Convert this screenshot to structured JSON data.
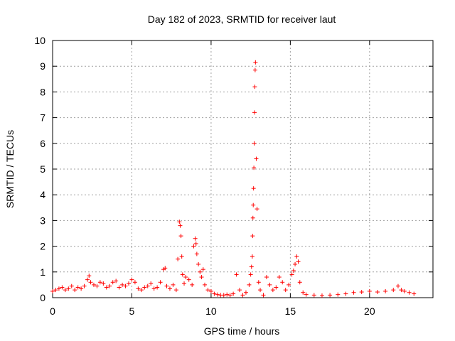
{
  "chart_data": {
    "type": "scatter",
    "title": "Day 182 of 2023, SRMTID for receiver laut",
    "xlabel": "GPS time / hours",
    "ylabel": "SRMTID / TECUs",
    "xlim": [
      0,
      24
    ],
    "ylim": [
      0,
      10
    ],
    "x_ticks": [
      0,
      5,
      10,
      15,
      20
    ],
    "y_ticks": [
      0,
      1,
      2,
      3,
      4,
      5,
      6,
      7,
      8,
      9,
      10
    ],
    "grid": true,
    "marker": "+",
    "series_color": "#ff0000",
    "series": [
      {
        "name": "SRMTID",
        "x": [
          0.0,
          0.2,
          0.4,
          0.6,
          0.8,
          1.0,
          1.2,
          1.4,
          1.6,
          1.8,
          2.0,
          2.2,
          2.3,
          2.4,
          2.6,
          2.8,
          3.0,
          3.2,
          3.4,
          3.6,
          3.8,
          4.0,
          4.2,
          4.4,
          4.6,
          4.8,
          5.0,
          5.2,
          5.4,
          5.6,
          5.8,
          6.0,
          6.2,
          6.4,
          6.6,
          6.8,
          7.0,
          7.1,
          7.2,
          7.4,
          7.6,
          7.8,
          7.9,
          8.0,
          8.05,
          8.1,
          8.15,
          8.2,
          8.3,
          8.4,
          8.6,
          8.8,
          8.9,
          9.0,
          9.05,
          9.1,
          9.2,
          9.3,
          9.4,
          9.5,
          9.6,
          9.8,
          10.0,
          10.2,
          10.4,
          10.6,
          10.8,
          11.0,
          11.2,
          11.4,
          11.6,
          11.8,
          12.0,
          12.2,
          12.4,
          12.5,
          12.55,
          12.6,
          12.62,
          12.64,
          12.66,
          12.68,
          12.7,
          12.72,
          12.74,
          12.76,
          12.78,
          12.8,
          12.85,
          12.9,
          13.0,
          13.1,
          13.3,
          13.5,
          13.7,
          13.9,
          14.1,
          14.3,
          14.5,
          14.7,
          14.9,
          15.1,
          15.2,
          15.3,
          15.4,
          15.5,
          15.6,
          15.8,
          16.0,
          16.5,
          17.0,
          17.5,
          18.0,
          18.5,
          19.0,
          19.5,
          20.0,
          20.5,
          21.0,
          21.5,
          21.8,
          22.0,
          22.2,
          22.5,
          22.8
        ],
        "y": [
          0.25,
          0.3,
          0.35,
          0.4,
          0.3,
          0.35,
          0.45,
          0.3,
          0.4,
          0.35,
          0.45,
          0.7,
          0.85,
          0.6,
          0.5,
          0.45,
          0.6,
          0.55,
          0.4,
          0.45,
          0.6,
          0.65,
          0.4,
          0.5,
          0.45,
          0.55,
          0.7,
          0.6,
          0.35,
          0.3,
          0.4,
          0.45,
          0.55,
          0.35,
          0.4,
          0.6,
          1.1,
          1.15,
          0.45,
          0.35,
          0.5,
          0.3,
          1.5,
          2.95,
          2.8,
          2.4,
          1.6,
          0.9,
          0.55,
          0.8,
          0.7,
          0.5,
          2.0,
          2.3,
          2.1,
          1.7,
          1.3,
          1.0,
          0.8,
          1.1,
          0.5,
          0.3,
          0.25,
          0.15,
          0.12,
          0.1,
          0.1,
          0.12,
          0.1,
          0.15,
          0.9,
          0.3,
          0.1,
          0.2,
          0.5,
          0.9,
          1.2,
          1.6,
          2.4,
          3.1,
          3.6,
          4.25,
          5.05,
          6.0,
          7.2,
          8.2,
          8.85,
          9.15,
          5.4,
          3.45,
          0.6,
          0.3,
          0.1,
          0.8,
          0.5,
          0.3,
          0.4,
          0.8,
          0.6,
          0.3,
          0.5,
          0.9,
          1.05,
          1.3,
          1.6,
          1.4,
          0.6,
          0.2,
          0.12,
          0.1,
          0.08,
          0.1,
          0.12,
          0.15,
          0.2,
          0.22,
          0.25,
          0.22,
          0.25,
          0.3,
          0.45,
          0.3,
          0.25,
          0.2,
          0.15
        ]
      }
    ]
  }
}
